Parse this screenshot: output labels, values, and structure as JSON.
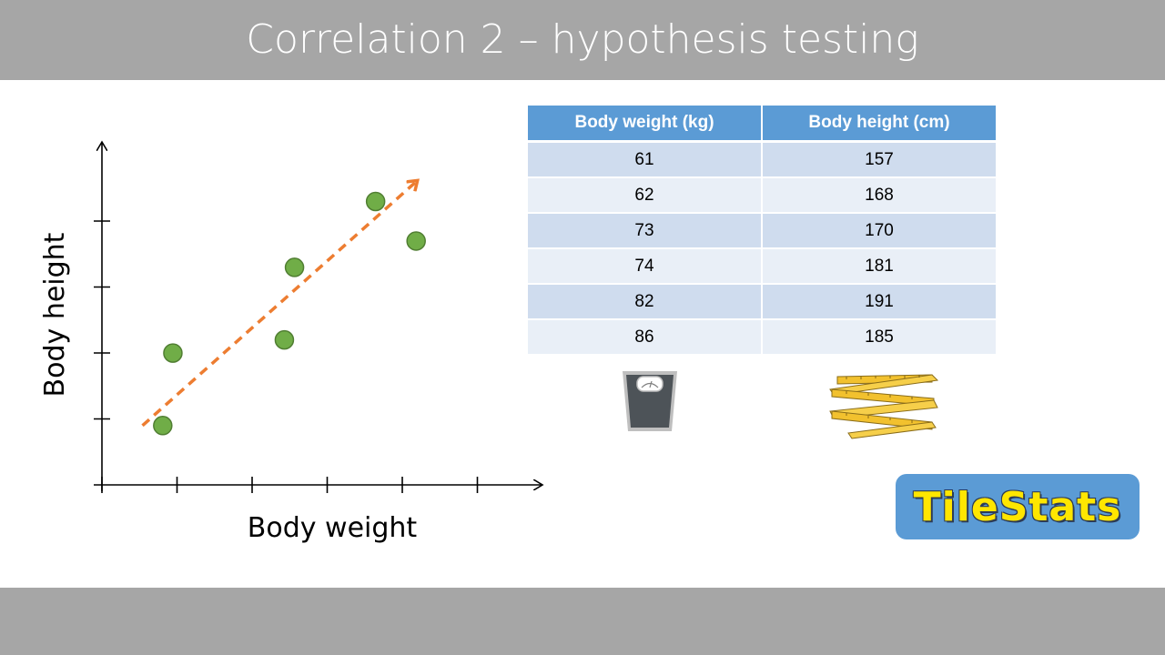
{
  "page": {
    "title": "Correlation 2 – hypothesis testing"
  },
  "colors": {
    "banner": "#a6a6a6",
    "point": "#70ad47",
    "trend": "#ed7d31",
    "table_header": "#5b9bd5",
    "row_dark": "#cfdcee",
    "row_light": "#e9eff7",
    "logo_bg": "#5b9bd5",
    "logo_text": "#ffe600"
  },
  "chart_data": {
    "type": "scatter",
    "xlabel": "Body weight",
    "ylabel": "Body height",
    "xlim": [
      55,
      92
    ],
    "ylim": [
      148,
      197
    ],
    "x_ticks_count": 5,
    "y_ticks_count": 4,
    "points": [
      {
        "x": 61,
        "y": 157
      },
      {
        "x": 62,
        "y": 168
      },
      {
        "x": 73,
        "y": 170
      },
      {
        "x": 74,
        "y": 181
      },
      {
        "x": 82,
        "y": 191
      },
      {
        "x": 86,
        "y": 185
      }
    ],
    "trend_line": {
      "style": "dashed-arrow",
      "from": {
        "x": 59,
        "y": 157
      },
      "to": {
        "x": 86,
        "y": 194
      }
    }
  },
  "table": {
    "headers": [
      "Body weight (kg)",
      "Body height (cm)"
    ],
    "rows": [
      [
        "61",
        "157"
      ],
      [
        "62",
        "168"
      ],
      [
        "73",
        "170"
      ],
      [
        "74",
        "181"
      ],
      [
        "82",
        "191"
      ],
      [
        "86",
        "185"
      ]
    ]
  },
  "icons": {
    "scale": "bathroom-scale-icon",
    "ruler": "folding-ruler-icon"
  },
  "logo": {
    "text": "TileStats"
  }
}
